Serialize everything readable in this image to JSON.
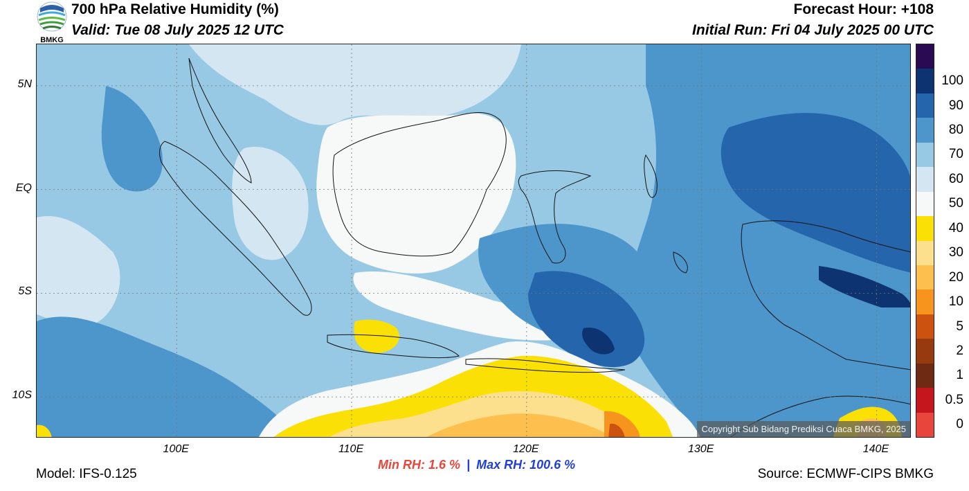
{
  "header": {
    "title": "700 hPa Relative Humidity (%)",
    "valid": "Valid: Tue 08 July 2025 12 UTC",
    "forecast_hour": "Forecast Hour: +108",
    "initial_run": "Initial Run: Fri 04 July 2025 00 UTC",
    "logo_text": "BMKG"
  },
  "map": {
    "lat_range": [
      -12,
      7
    ],
    "lon_range": [
      92,
      142
    ],
    "lat_labels": [
      {
        "value": 5,
        "text": "5N"
      },
      {
        "value": 0,
        "text": "EQ"
      },
      {
        "value": -5,
        "text": "5S"
      },
      {
        "value": -10,
        "text": "10S"
      }
    ],
    "lon_labels": [
      {
        "value": 100,
        "text": "100E"
      },
      {
        "value": 110,
        "text": "110E"
      },
      {
        "value": 120,
        "text": "120E"
      },
      {
        "value": 130,
        "text": "130E"
      },
      {
        "value": 140,
        "text": "140E"
      }
    ],
    "copyright": "Copyright Sub Bidang Prediksi Cuaca BMKG, 2025"
  },
  "colorbar": {
    "levels": [
      {
        "label": "0",
        "color": "#e8453c"
      },
      {
        "label": "0.5",
        "color": "#c4161c"
      },
      {
        "label": "1",
        "color": "#6e2a12"
      },
      {
        "label": "2",
        "color": "#973a10"
      },
      {
        "label": "5",
        "color": "#cc5210"
      },
      {
        "label": "10",
        "color": "#f7941d"
      },
      {
        "label": "20",
        "color": "#fdc04f"
      },
      {
        "label": "30",
        "color": "#fde08e"
      },
      {
        "label": "40",
        "color": "#fbe005"
      },
      {
        "label": "50",
        "color": "#f7f8f8"
      },
      {
        "label": "60",
        "color": "#d3e6f2"
      },
      {
        "label": "70",
        "color": "#98c9e4"
      },
      {
        "label": "80",
        "color": "#4d96cc"
      },
      {
        "label": "90",
        "color": "#2465ac"
      },
      {
        "label": "100",
        "color": "#0d3370"
      },
      {
        "label": "",
        "color": "#2a0a52"
      }
    ]
  },
  "stats": {
    "min": "Min RH:   1.6 %",
    "separator": "|",
    "max": "Max RH: 100.6 %",
    "min_color": "#e8453c",
    "max_color": "#1f3fd6"
  },
  "footer": {
    "model": "Model: IFS-0.125",
    "source": "Source: ECMWF-CIPS BMKG"
  }
}
